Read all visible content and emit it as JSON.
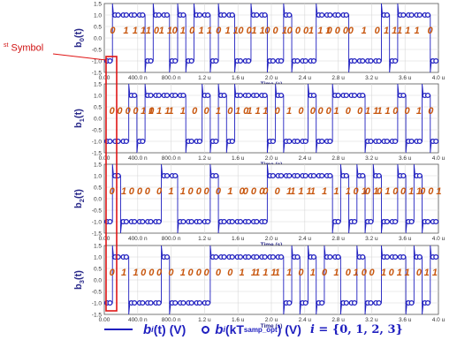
{
  "chart_data": [
    {
      "type": "line",
      "ylabel": "b0(t)",
      "ylabel_main": "b",
      "ylabel_sub": "0",
      "ylabel_tail": "(t)",
      "xlabel": "Time (s)",
      "x_ticks": [
        "0.00",
        "400.0 n",
        "800.0 n",
        "1.2 u",
        "1.6 u",
        "2.0 u",
        "2.4 u",
        "2.8 u",
        "3.2 u",
        "3.6 u",
        "4.0 u"
      ],
      "y_ticks": [
        "1.5",
        "1.0",
        "0.5",
        "0.0",
        "-0.5",
        "-1.0",
        "-1.5"
      ],
      "xlim": [
        0,
        4
      ],
      "ylim": [
        -1.5,
        1.5
      ],
      "bits": "01111011010110110011001000111100001011110",
      "bit_labels": [
        "0",
        "1",
        "1 1",
        "1 0",
        "1 1",
        "0 1",
        "0",
        "1 1",
        "0",
        "1 1",
        "0 0",
        "1 1",
        "0 0",
        "1",
        "0 0 0",
        "1",
        "1 1",
        "0 0 0",
        "0",
        "1",
        "0",
        "1 1",
        "1 1",
        "1",
        "0"
      ]
    },
    {
      "type": "line",
      "ylabel": "b1(t)",
      "ylabel_main": "b",
      "ylabel_sub": "1",
      "ylabel_tail": "(t)",
      "xlabel": "Time (s)",
      "x_ticks": [
        "0.00",
        "400.0 n",
        "800.0 n",
        "1.2 u",
        "1.6 u",
        "2.0 u",
        "2.4 u",
        "2.8 u",
        "3.2 u",
        "3.6 u",
        "4.0 u"
      ],
      "y_ticks": [
        "1.5",
        "1.0",
        "0.5",
        "0.0",
        "-0.5",
        "-1.0",
        "-1.5"
      ],
      "xlim": [
        0,
        4
      ],
      "ylim": [
        -1.5,
        1.5
      ],
      "bits": "00010111110010101111010001001111000010010",
      "bit_labels": [
        "0",
        "0 0",
        "0",
        "1 0",
        "1 1 1",
        "1",
        "1",
        "0",
        "0",
        "1",
        "0",
        "1 0",
        "1 1",
        "1",
        "0",
        "1",
        "0",
        "0",
        "0 0",
        "1",
        "0",
        "0",
        "1 1",
        "1 1",
        "0",
        "0",
        "1",
        "0"
      ]
    },
    {
      "type": "line",
      "ylabel": "b2(t)",
      "ylabel_main": "b",
      "ylabel_sub": "2",
      "ylabel_tail": "(t)",
      "xlabel": "Time (s)",
      "x_ticks": [
        "0.00",
        "400.0 n",
        "800.0 n",
        "1.2 u",
        "1.6 u",
        "2.0 u",
        "2.4 u",
        "2.8 u",
        "3.2 u",
        "3.6 u",
        "4.0 u"
      ],
      "y_ticks": [
        "1.5",
        "1.0",
        "0.5",
        "0.0",
        "-0.5",
        "-1.0",
        "-1.5"
      ],
      "xlim": [
        0,
        4
      ],
      "ylim": [
        -1.5,
        1.5
      ],
      "bits": "01000001100001000000111111110101010010100",
      "bit_labels": [
        "0",
        "1",
        "0 0",
        "0",
        "0",
        "1",
        "1",
        "0 0",
        "0",
        "0",
        "1",
        "0",
        "0 0 0",
        "0",
        "0",
        "1",
        "1 1 1",
        "1",
        "1",
        "1",
        "1",
        "0 1",
        "0 1",
        "0 1",
        "0",
        "0 1",
        "1",
        "0 0 1"
      ]
    },
    {
      "type": "line",
      "ylabel": "b3(t)",
      "ylabel_main": "b",
      "ylabel_sub": "3",
      "ylabel_tail": "(t)",
      "xlabel": "Time (s)",
      "x_ticks": [
        "0.00",
        "400.0 n",
        "800.0 n",
        "1.2 u",
        "1.6 u",
        "2.0 u",
        "2.4 u",
        "2.8 u",
        "3.2 u",
        "3.6 u",
        "4.0 u"
      ],
      "y_ticks": [
        "1.5",
        "1.0",
        "0.5",
        "0.0",
        "-0.5",
        "-1.0",
        "-1.5"
      ],
      "xlim": [
        0,
        4
      ],
      "ylim": [
        -1.5,
        1.5
      ],
      "bits": "01100001000001111111110101011001001110101",
      "bit_labels": [
        "0",
        "1",
        "1",
        "0 0",
        "0",
        "0",
        "1",
        "0 0",
        "0",
        "0",
        "0",
        "1",
        "1",
        "1 1 1",
        "1",
        "1",
        "0",
        "1",
        "0",
        "1",
        "0",
        "1 0",
        "0",
        "1",
        "0 1",
        "1",
        "0",
        "1 1"
      ]
    }
  ],
  "annotation": {
    "first_symbol_sup": "st",
    "first_symbol_text": " Symbol"
  },
  "legend": {
    "line_main": "b",
    "line_sub": "i",
    "line_tail": "(t) (V)",
    "circle_main": "b",
    "circle_sub": "i",
    "circle_paren_open": "(kT",
    "circle_sub2": "samp_opt",
    "circle_tail": ") (V)",
    "set_var": "i",
    "set_text": " = {0, 1, 2, 3}"
  },
  "colors": {
    "trace": "#1f1fbf",
    "bits": "#c8570f",
    "highlight": "#e01515",
    "grid": "#d8d8d8",
    "axis_text": "#2a2a8a"
  }
}
